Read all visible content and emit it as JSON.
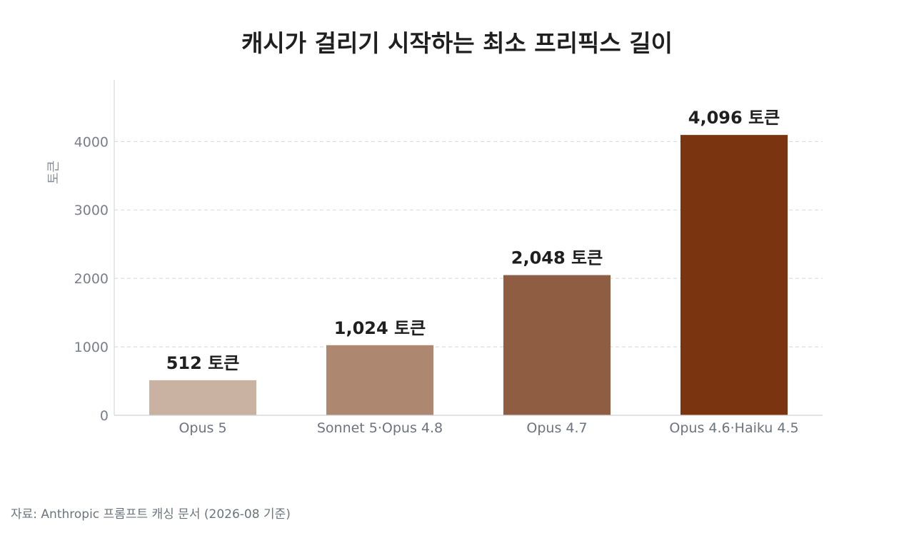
{
  "chart_data": {
    "type": "bar",
    "title": "캐시가 걸리기 시작하는 최소 프리픽스 길이",
    "ylabel": "토큰",
    "xlabel": "",
    "categories": [
      "Opus 5",
      "Sonnet 5·Opus 4.8",
      "Opus 4.7",
      "Opus 4.6·Haiku 4.5"
    ],
    "values": [
      512,
      1024,
      2048,
      4096
    ],
    "data_labels": [
      "512 토큰",
      "1,024 토큰",
      "2,048 토큰",
      "4,096 토큰"
    ],
    "bar_colors": [
      "#c9b2a2",
      "#ad8770",
      "#8e5d42",
      "#7a3510"
    ],
    "yticks": [
      0,
      1000,
      2000,
      3000,
      4000
    ],
    "ylim": [
      0,
      4900
    ],
    "grid": true,
    "legend": "none"
  },
  "source": "자료: Anthropic 프롬프트 캐싱 문서 (2026-08 기준)"
}
